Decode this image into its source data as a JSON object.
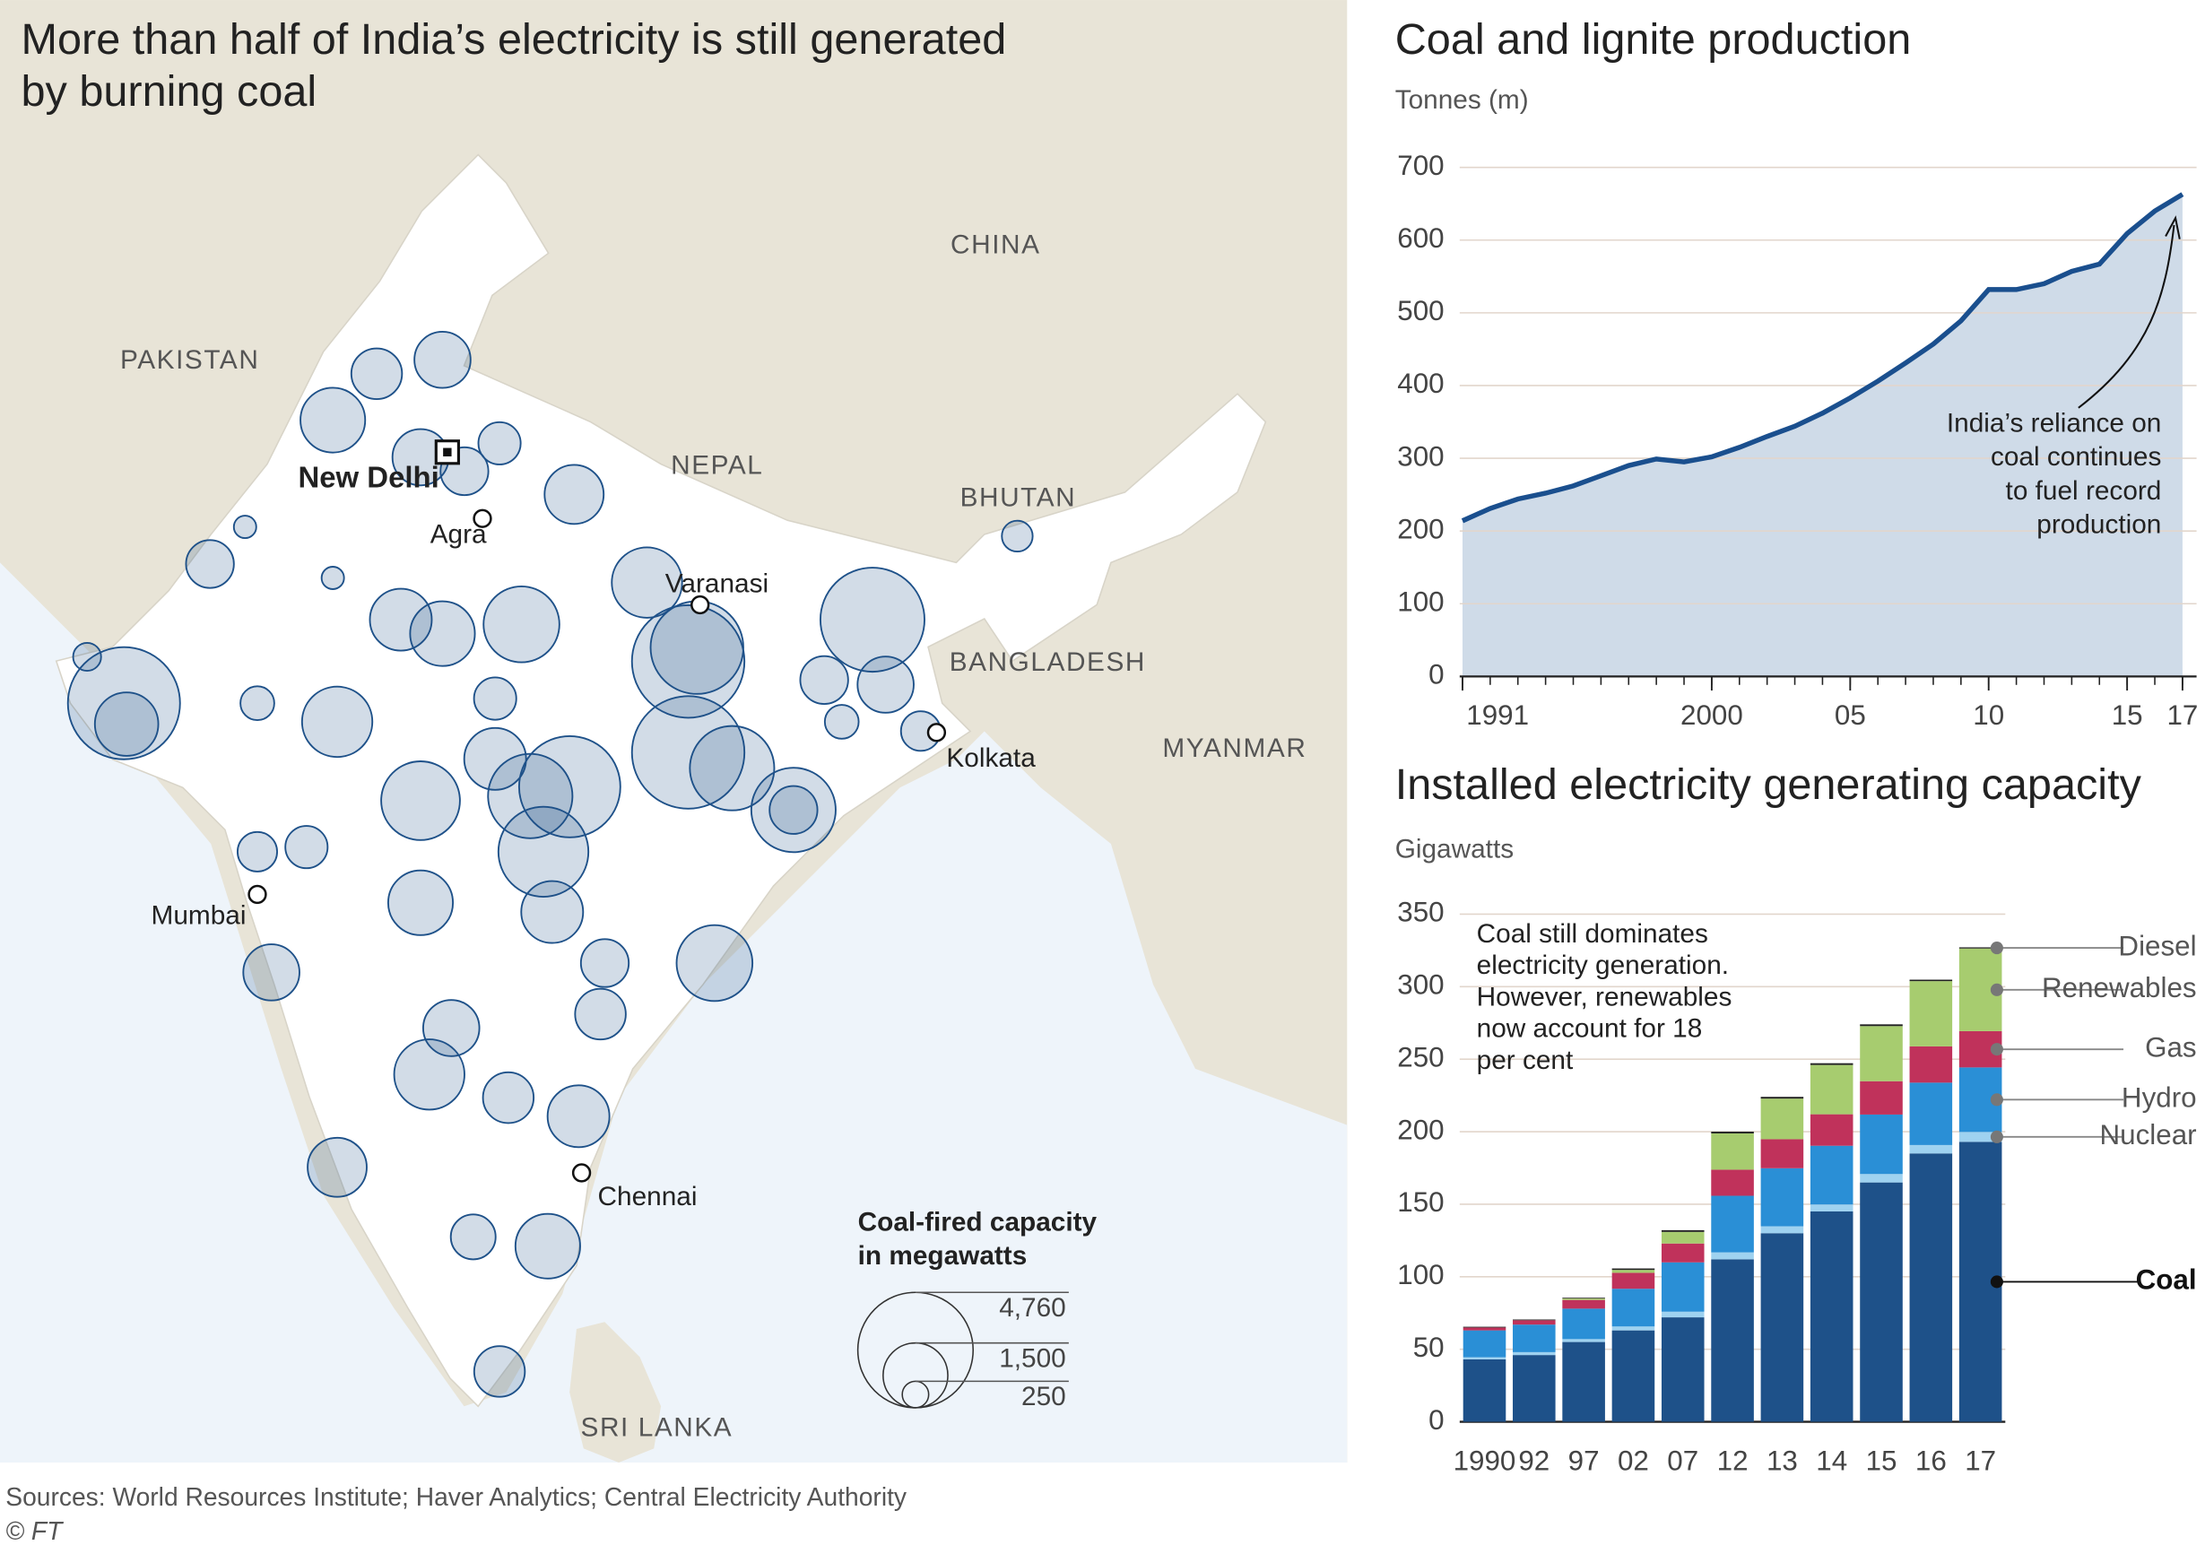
{
  "chart_data": [
    {
      "type": "map",
      "title": [
        "More than half of India’s electricity is still generated",
        "by burning coal"
      ],
      "countries": [
        "PAKISTAN",
        "CHINA",
        "NEPAL",
        "BHUTAN",
        "BANGLADESH",
        "MYANMAR",
        "SRI LANKA"
      ],
      "cities": {
        "names": [
          "New Delhi",
          "Agra",
          "Varanasi",
          "Kolkata",
          "Mumbai",
          "Chennai"
        ],
        "lon": [
          77.21,
          78.01,
          82.97,
          88.36,
          72.88,
          80.27
        ],
        "lat": [
          28.61,
          27.18,
          25.32,
          22.57,
          19.08,
          13.08
        ]
      },
      "points": {
        "color": "#1e5189",
        "lon": [
          69.84,
          69.9,
          69.0,
          75.6,
          74.6,
          76.6,
          77.1,
          77.6,
          80.1,
          78.4,
          71.8,
          74.7,
          72.88,
          76.15,
          77.1,
          78.9,
          78.3,
          76.6,
          78.3,
          79.1,
          80.0,
          79.4,
          79.6,
          81.76,
          82.7,
          82.9,
          82.7,
          83.7,
          85.1,
          85.1,
          86.9,
          85.8,
          87.2,
          86.2,
          88.0,
          72.88,
          74.0,
          73.2,
          76.6,
          80.8,
          83.3,
          80.7,
          77.3,
          76.8,
          80.2,
          78.6,
          74.7,
          79.5,
          77.8,
          78.4,
          90.2,
          72.6,
          74.6
        ],
        "lat": [
          23.2,
          22.75,
          24.2,
          30.3,
          29.3,
          28.5,
          30.6,
          28.2,
          27.7,
          28.8,
          26.2,
          22.8,
          23.2,
          25.0,
          24.7,
          24.9,
          23.3,
          21.1,
          22.0,
          21.2,
          21.4,
          20.0,
          18.7,
          25.8,
          24.1,
          24.4,
          22.14,
          21.8,
          20.9,
          20.9,
          25.0,
          23.7,
          23.6,
          22.8,
          22.6,
          20.0,
          20.1,
          17.4,
          18.9,
          17.6,
          17.6,
          16.5,
          16.2,
          15.2,
          14.3,
          14.7,
          13.2,
          11.5,
          11.7,
          8.8,
          26.8,
          27.0,
          25.9
        ],
        "capacity": [
          4500,
          1440,
          280,
          920,
          1500,
          1130,
          1130,
          820,
          1250,
          640,
          820,
          1770,
          410,
          1370,
          1500,
          2060,
          640,
          2220,
          1370,
          2550,
          3670,
          2900,
          1370,
          1770,
          4530,
          3080,
          4530,
          2550,
          2550,
          820,
          3880,
          820,
          1130,
          410,
          560,
          560,
          640,
          1130,
          1500,
          820,
          2060,
          920,
          1130,
          1770,
          1370,
          920,
          1250,
          1500,
          720,
          920,
          340,
          180,
          180
        ]
      },
      "size_legend": {
        "title": [
          "Coal-fired capacity",
          "in megawatts"
        ],
        "values": [
          4760,
          1500,
          250
        ],
        "value_labels": [
          "4,760",
          "1,500",
          "250"
        ]
      }
    },
    {
      "type": "area",
      "title": "Coal and lignite production",
      "ylabel": "Tonnes (m)",
      "x": [
        1991,
        1992,
        1993,
        1994,
        1995,
        1996,
        1997,
        1998,
        1999,
        2000,
        2001,
        2002,
        2003,
        2004,
        2005,
        2006,
        2007,
        2008,
        2009,
        2010,
        2011,
        2012,
        2013,
        2014,
        2015,
        2016,
        2017
      ],
      "values": [
        214,
        231,
        244,
        252,
        262,
        276,
        290,
        299,
        295,
        302,
        315,
        330,
        344,
        362,
        383,
        406,
        431,
        457,
        489,
        532,
        532,
        540,
        557,
        567,
        609,
        640,
        663
      ],
      "color": "#1a4f8e",
      "fill": "#cfdbe8",
      "xlim": [
        1991,
        2017
      ],
      "xticks": [
        1991,
        2000,
        {
          "value": 2005,
          "label": "05"
        },
        {
          "value": 2010,
          "label": "10"
        },
        {
          "value": 2015,
          "label": "15"
        },
        {
          "value": 2017,
          "label": "17"
        }
      ],
      "ylim": [
        0,
        700
      ],
      "yticks": [
        0,
        100,
        200,
        300,
        400,
        500,
        600,
        700
      ],
      "grid": true,
      "annotation": [
        "India’s reliance on",
        "coal continues",
        "to fuel record",
        "production"
      ]
    },
    {
      "type": "bar",
      "stacked": true,
      "title": "Installed electricity generating capacity",
      "ylabel": "Gigawatts",
      "categories": [
        "1990",
        "92",
        "97",
        "02",
        "07",
        "12",
        "13",
        "14",
        "15",
        "16",
        "17"
      ],
      "series": [
        {
          "name": "Coal",
          "color": "#1e5189",
          "values": [
            43,
            46,
            55,
            63,
            72,
            112,
            130,
            145,
            165,
            185,
            193
          ]
        },
        {
          "name": "Nuclear",
          "color": "#9fd2f0",
          "values": [
            1.5,
            2,
            2,
            2.7,
            3.9,
            4.8,
            4.8,
            4.8,
            5.8,
            5.8,
            6.8
          ]
        },
        {
          "name": "Hydro",
          "color": "#2a8fd6",
          "values": [
            18.5,
            19,
            21,
            26,
            34,
            39,
            40,
            40.5,
            41,
            43,
            44.5
          ]
        },
        {
          "name": "Gas",
          "color": "#c0325b",
          "values": [
            2,
            3,
            6,
            11,
            13,
            18,
            20,
            21.7,
            23,
            25,
            25
          ]
        },
        {
          "name": "Renewables",
          "color": "#a7cc6f",
          "values": [
            0,
            0,
            1,
            2,
            8,
            25,
            28,
            34,
            38,
            45,
            57
          ]
        },
        {
          "name": "Diesel",
          "color": "#222222",
          "values": [
            0.5,
            0.5,
            0.5,
            1,
            1.2,
            1.2,
            1.2,
            1.2,
            1.2,
            1,
            0.8
          ]
        }
      ],
      "ylim": [
        0,
        350
      ],
      "yticks": [
        0,
        50,
        100,
        150,
        200,
        250,
        300,
        350
      ],
      "grid": true,
      "annotation": [
        "Coal still dominates",
        "electricity generation.",
        "However, renewables",
        "now account for 18",
        "per cent"
      ]
    }
  ],
  "footer": {
    "sources": "Sources: World Resources Institute; Haver Analytics; Central Electricity Authority",
    "credit": "© FT"
  }
}
